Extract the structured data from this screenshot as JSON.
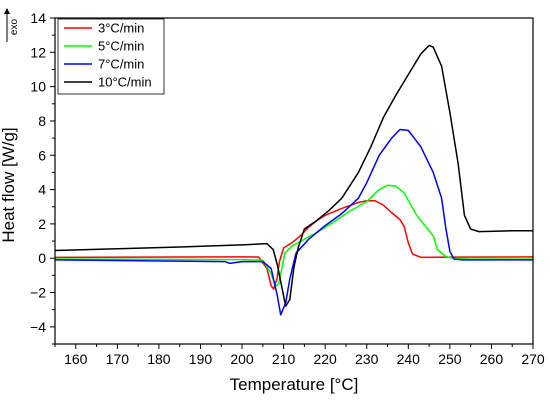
{
  "chart_data": {
    "type": "line",
    "xlabel": "Temperature [°C]",
    "ylabel": "Heat flow [W/g]",
    "exo_label": "exo",
    "xlim": [
      155,
      270
    ],
    "ylim": [
      -5,
      14
    ],
    "xticks": [
      160,
      170,
      180,
      190,
      200,
      210,
      220,
      230,
      240,
      250,
      260,
      270
    ],
    "yticks": [
      -4,
      -2,
      0,
      2,
      4,
      6,
      8,
      10,
      12,
      14
    ],
    "grid": false,
    "legend_position": "top-left",
    "series": [
      {
        "name": "3°C/min",
        "color": "#ff0000",
        "points": [
          [
            155,
            0.05
          ],
          [
            200,
            0.08
          ],
          [
            204,
            0.07
          ],
          [
            206,
            -0.6
          ],
          [
            207,
            -1.6
          ],
          [
            207.6,
            -1.8
          ],
          [
            208.4,
            -1.2
          ],
          [
            209,
            -0.2
          ],
          [
            210,
            0.6
          ],
          [
            212,
            0.9
          ],
          [
            214,
            1.3
          ],
          [
            216,
            1.8
          ],
          [
            218,
            2.2
          ],
          [
            220,
            2.5
          ],
          [
            224,
            2.9
          ],
          [
            228,
            3.25
          ],
          [
            230,
            3.35
          ],
          [
            232,
            3.35
          ],
          [
            234,
            3.1
          ],
          [
            236,
            2.65
          ],
          [
            238,
            2.25
          ],
          [
            239,
            1.85
          ],
          [
            240,
            0.9
          ],
          [
            241,
            0.25
          ],
          [
            243,
            0.05
          ],
          [
            250,
            0.06
          ],
          [
            270,
            0.08
          ]
        ]
      },
      {
        "name": "5°C/min",
        "color": "#00ff00",
        "points": [
          [
            155,
            -0.05
          ],
          [
            200,
            -0.08
          ],
          [
            205,
            -0.12
          ],
          [
            207,
            -0.9
          ],
          [
            208,
            -1.65
          ],
          [
            208.8,
            -1.5
          ],
          [
            209.5,
            -0.7
          ],
          [
            210.3,
            0.3
          ],
          [
            212,
            0.7
          ],
          [
            215,
            1.1
          ],
          [
            218,
            1.5
          ],
          [
            222,
            2.1
          ],
          [
            226,
            2.75
          ],
          [
            230,
            3.3
          ],
          [
            233,
            4.0
          ],
          [
            235,
            4.25
          ],
          [
            237,
            4.2
          ],
          [
            239,
            3.8
          ],
          [
            242,
            2.5
          ],
          [
            244,
            1.9
          ],
          [
            246,
            1.3
          ],
          [
            247,
            0.5
          ],
          [
            249,
            0.1
          ],
          [
            251,
            -0.02
          ],
          [
            255,
            -0.05
          ],
          [
            270,
            -0.05
          ]
        ]
      },
      {
        "name": "7°C/min",
        "color": "#0000ff",
        "points": [
          [
            155,
            -0.1
          ],
          [
            196,
            -0.2
          ],
          [
            197,
            -0.3
          ],
          [
            200,
            -0.2
          ],
          [
            205,
            -0.2
          ],
          [
            207,
            -0.6
          ],
          [
            208.5,
            -2.2
          ],
          [
            209.3,
            -3.3
          ],
          [
            210.5,
            -2.6
          ],
          [
            211.5,
            -1.2
          ],
          [
            213,
            0.3
          ],
          [
            216,
            1.1
          ],
          [
            220,
            1.9
          ],
          [
            224,
            2.6
          ],
          [
            228,
            3.5
          ],
          [
            230,
            4.4
          ],
          [
            233,
            6.0
          ],
          [
            236,
            7.0
          ],
          [
            238,
            7.5
          ],
          [
            240,
            7.45
          ],
          [
            243,
            6.5
          ],
          [
            246,
            5.0
          ],
          [
            248,
            3.5
          ],
          [
            249,
            1.8
          ],
          [
            250,
            0.4
          ],
          [
            251,
            -0.05
          ],
          [
            253,
            -0.1
          ],
          [
            270,
            -0.1
          ]
        ]
      },
      {
        "name": "10°C/min",
        "color": "#000000",
        "points": [
          [
            155,
            0.45
          ],
          [
            170,
            0.55
          ],
          [
            185,
            0.65
          ],
          [
            200,
            0.78
          ],
          [
            206,
            0.85
          ],
          [
            207.5,
            0.5
          ],
          [
            208.5,
            -0.4
          ],
          [
            209.5,
            -1.6
          ],
          [
            210.5,
            -2.8
          ],
          [
            211.5,
            -2.4
          ],
          [
            212.5,
            -0.5
          ],
          [
            213.5,
            0.6
          ],
          [
            215,
            1.7
          ],
          [
            218,
            2.2
          ],
          [
            221,
            2.8
          ],
          [
            224,
            3.5
          ],
          [
            228,
            5.0
          ],
          [
            231,
            6.5
          ],
          [
            234,
            8.2
          ],
          [
            237,
            9.5
          ],
          [
            240,
            10.7
          ],
          [
            243,
            11.9
          ],
          [
            245,
            12.4
          ],
          [
            246,
            12.3
          ],
          [
            248,
            11.2
          ],
          [
            250,
            8.5
          ],
          [
            252,
            5.5
          ],
          [
            253.5,
            2.5
          ],
          [
            255,
            1.7
          ],
          [
            257,
            1.55
          ],
          [
            265,
            1.6
          ],
          [
            270,
            1.6
          ]
        ]
      }
    ]
  }
}
